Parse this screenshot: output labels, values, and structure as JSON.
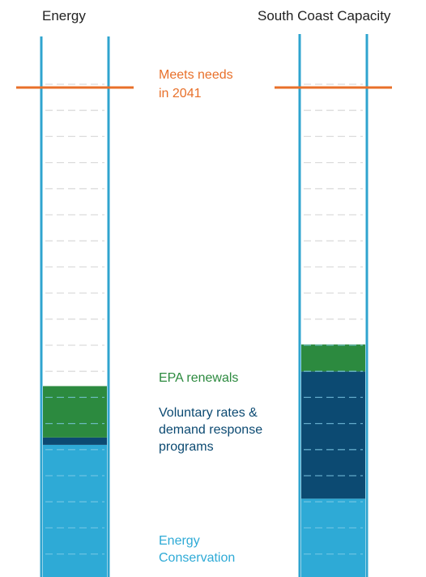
{
  "chart_data": {
    "type": "bar",
    "categories": [
      "Energy",
      "South Coast Capacity"
    ],
    "units_note": "",
    "ylim": [
      0,
      100
    ],
    "target": {
      "value": 100,
      "label_lines": [
        "Meets needs",
        "in 2041"
      ]
    },
    "series": [
      {
        "name": "Energy Conservation",
        "label_lines": [
          "Energy",
          "Conservation"
        ],
        "values": [
          27,
          16
        ]
      },
      {
        "name": "Voluntary rates & demand response programs",
        "label_lines": [
          "Voluntary rates &",
          "demand response",
          "programs"
        ],
        "values": [
          1.5,
          26
        ]
      },
      {
        "name": "EPA renewals",
        "label_lines": [
          "EPA renewals"
        ],
        "values": [
          10.5,
          5.5
        ]
      }
    ]
  },
  "colors": {
    "tube": "#2fa4cf",
    "conservation": "#2eaad6",
    "voluntary": "#0c4a72",
    "epa": "#2c8a3f",
    "target": "#e8702a",
    "dash_light": "#dcdcdc",
    "dash_on_fill": "#7fcbe6",
    "voluntary_text": "#0c4a72",
    "epa_text": "#2c8a3f",
    "conservation_text": "#2eaad6"
  }
}
